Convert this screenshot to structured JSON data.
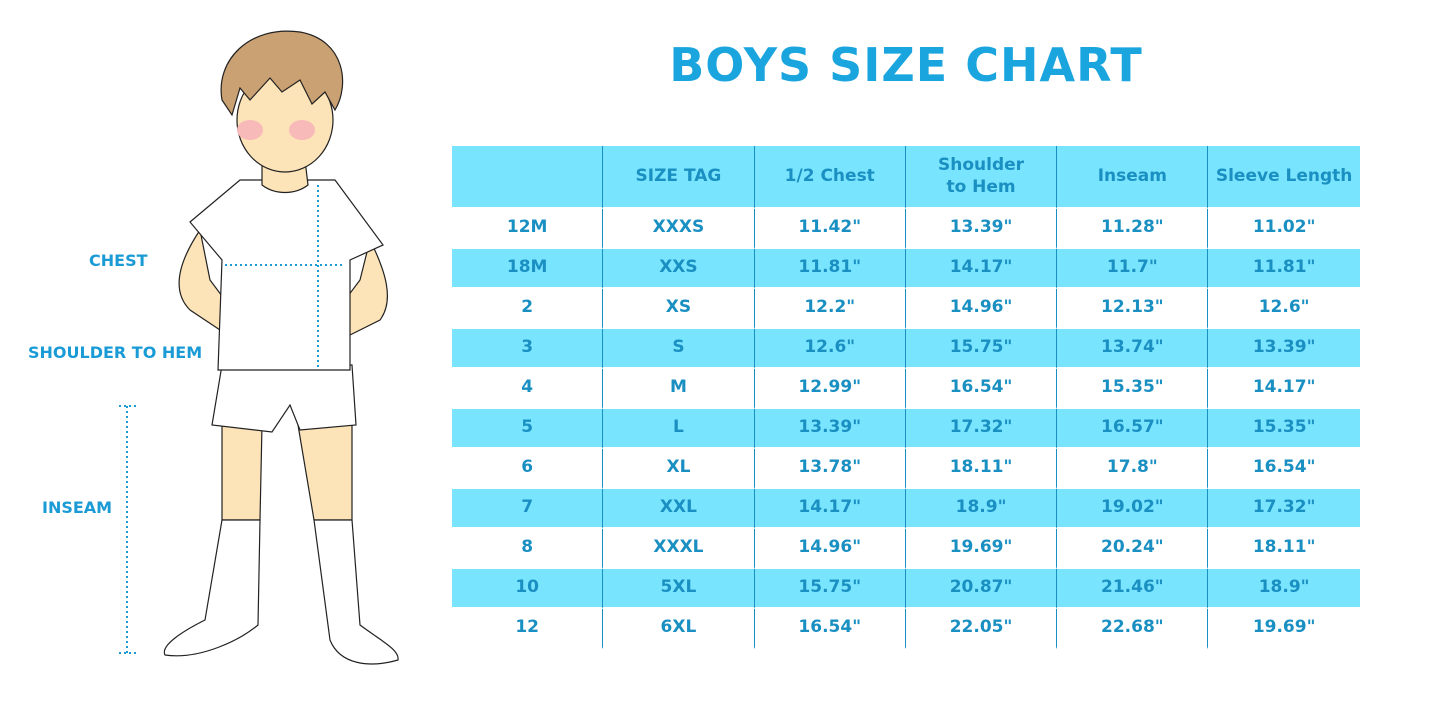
{
  "title": "BOYS SIZE CHART",
  "figure_labels": {
    "chest": "CHEST",
    "shoulder_to_hem": "SHOULDER TO HEM",
    "inseam": "INSEAM"
  },
  "colors": {
    "accent": "#1aa5de",
    "stripe": "#78e4fd",
    "text": "#1a8fc2"
  },
  "table": {
    "headers": [
      "",
      "SIZE TAG",
      "1/2 Chest",
      "Shoulder to Hem",
      "Inseam",
      "Sleeve Length"
    ],
    "rows": [
      [
        "12M",
        "XXXS",
        "11.42\"",
        "13.39\"",
        "11.28\"",
        "11.02\""
      ],
      [
        "18M",
        "XXS",
        "11.81\"",
        "14.17\"",
        "11.7\"",
        "11.81\""
      ],
      [
        "2",
        "XS",
        "12.2\"",
        "14.96\"",
        "12.13\"",
        "12.6\""
      ],
      [
        "3",
        "S",
        "12.6\"",
        "15.75\"",
        "13.74\"",
        "13.39\""
      ],
      [
        "4",
        "M",
        "12.99\"",
        "16.54\"",
        "15.35\"",
        "14.17\""
      ],
      [
        "5",
        "L",
        "13.39\"",
        "17.32\"",
        "16.57\"",
        "15.35\""
      ],
      [
        "6",
        "XL",
        "13.78\"",
        "18.11\"",
        "17.8\"",
        "16.54\""
      ],
      [
        "7",
        "XXL",
        "14.17\"",
        "18.9\"",
        "19.02\"",
        "17.32\""
      ],
      [
        "8",
        "XXXL",
        "14.96\"",
        "19.69\"",
        "20.24\"",
        "18.11\""
      ],
      [
        "10",
        "5XL",
        "15.75\"",
        "20.87\"",
        "21.46\"",
        "18.9\""
      ],
      [
        "12",
        "6XL",
        "16.54\"",
        "22.05\"",
        "22.68\"",
        "19.69\""
      ]
    ]
  }
}
